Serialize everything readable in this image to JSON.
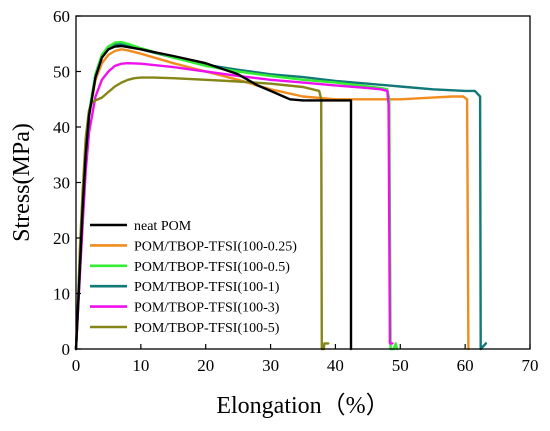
{
  "chart_data": {
    "type": "line",
    "title": "",
    "xlabel": "Elongation（%）",
    "ylabel": "Stress(MPa)",
    "xlim": [
      0,
      70
    ],
    "ylim": [
      0,
      60
    ],
    "x_ticks": [
      0,
      10,
      20,
      30,
      40,
      50,
      60,
      70
    ],
    "y_ticks": [
      0,
      10,
      20,
      30,
      40,
      50,
      60
    ],
    "grid": false,
    "legend_position": "bottom-left",
    "series": [
      {
        "name": "neat POM",
        "color": "#000000",
        "points": [
          [
            0,
            0
          ],
          [
            0.5,
            12
          ],
          [
            1,
            25
          ],
          [
            1.5,
            35
          ],
          [
            2,
            42
          ],
          [
            3,
            49
          ],
          [
            4,
            52.5
          ],
          [
            5,
            54
          ],
          [
            6,
            54.5
          ],
          [
            7,
            54.6
          ],
          [
            8,
            54.4
          ],
          [
            10,
            54
          ],
          [
            12,
            53.5
          ],
          [
            15,
            52.8
          ],
          [
            20,
            51.5
          ],
          [
            25,
            49.5
          ],
          [
            28,
            47.5
          ],
          [
            30,
            46.5
          ],
          [
            32,
            45.5
          ],
          [
            33,
            45
          ],
          [
            35,
            44.8
          ],
          [
            40,
            44.8
          ],
          [
            42.4,
            44.8
          ],
          [
            42.4,
            0
          ]
        ]
      },
      {
        "name": "POM/TBOP-TFSI(100-0.25)",
        "color": "#f28c1e",
        "points": [
          [
            0,
            0
          ],
          [
            0.5,
            12
          ],
          [
            1,
            25
          ],
          [
            1.5,
            35
          ],
          [
            2,
            42
          ],
          [
            3,
            48.5
          ],
          [
            4,
            51.5
          ],
          [
            5,
            53
          ],
          [
            6,
            53.7
          ],
          [
            7,
            54
          ],
          [
            8,
            53.8
          ],
          [
            10,
            53.2
          ],
          [
            15,
            51.5
          ],
          [
            20,
            50
          ],
          [
            25,
            48.5
          ],
          [
            30,
            46.8
          ],
          [
            35,
            45.5
          ],
          [
            40,
            45
          ],
          [
            45,
            45
          ],
          [
            50,
            45
          ],
          [
            55,
            45.3
          ],
          [
            58,
            45.5
          ],
          [
            59.7,
            45.5
          ],
          [
            60.3,
            45
          ],
          [
            60.5,
            0
          ]
        ]
      },
      {
        "name": "POM/TBOP-TFSI(100-0.5)",
        "color": "#33ee33",
        "points": [
          [
            0,
            0
          ],
          [
            0.5,
            12
          ],
          [
            1,
            25
          ],
          [
            1.5,
            35
          ],
          [
            2,
            42.5
          ],
          [
            3,
            49.5
          ],
          [
            4,
            53
          ],
          [
            5,
            54.5
          ],
          [
            6,
            55.2
          ],
          [
            7,
            55.3
          ],
          [
            8,
            55
          ],
          [
            10,
            54.2
          ],
          [
            15,
            52.5
          ],
          [
            20,
            51
          ],
          [
            25,
            50
          ],
          [
            30,
            49.2
          ],
          [
            35,
            48.5
          ],
          [
            40,
            48
          ],
          [
            45,
            47.3
          ],
          [
            47,
            47
          ],
          [
            48,
            46.8
          ],
          [
            48.3,
            45
          ],
          [
            48.5,
            0
          ],
          [
            49,
            0
          ],
          [
            49.3,
            1
          ],
          [
            49.5,
            0
          ]
        ]
      },
      {
        "name": "POM/TBOP-TFSI(100-1)",
        "color": "#117a77",
        "points": [
          [
            0,
            0
          ],
          [
            0.5,
            12
          ],
          [
            1,
            25
          ],
          [
            1.5,
            35
          ],
          [
            2,
            42.5
          ],
          [
            3,
            49.5
          ],
          [
            4,
            53
          ],
          [
            5,
            54.5
          ],
          [
            6,
            55
          ],
          [
            7,
            55
          ],
          [
            8,
            54.7
          ],
          [
            10,
            54
          ],
          [
            15,
            52.5
          ],
          [
            20,
            51.2
          ],
          [
            25,
            50.3
          ],
          [
            30,
            49.5
          ],
          [
            35,
            49
          ],
          [
            40,
            48.3
          ],
          [
            45,
            47.8
          ],
          [
            50,
            47.3
          ],
          [
            55,
            46.8
          ],
          [
            60,
            46.5
          ],
          [
            61.5,
            46.5
          ],
          [
            62.3,
            45.5
          ],
          [
            62.4,
            0
          ],
          [
            62.8,
            0.5
          ],
          [
            63.2,
            1
          ]
        ]
      },
      {
        "name": "POM/TBOP-TFSI(100-3)",
        "color": "#ee11ee",
        "points": [
          [
            0,
            0
          ],
          [
            0.5,
            11
          ],
          [
            1,
            22
          ],
          [
            1.5,
            32
          ],
          [
            2,
            39
          ],
          [
            3,
            45.5
          ],
          [
            4,
            48.5
          ],
          [
            5,
            50
          ],
          [
            6,
            51
          ],
          [
            7,
            51.4
          ],
          [
            8,
            51.5
          ],
          [
            10,
            51.4
          ],
          [
            15,
            50.8
          ],
          [
            20,
            50
          ],
          [
            25,
            49.2
          ],
          [
            30,
            48.5
          ],
          [
            35,
            48
          ],
          [
            40,
            47.5
          ],
          [
            45,
            47
          ],
          [
            47,
            46.8
          ],
          [
            48,
            46.5
          ],
          [
            48.2,
            44
          ],
          [
            48.4,
            1
          ],
          [
            48.8,
            1
          ]
        ]
      },
      {
        "name": "POM/TBOP-TFSI(100-5)",
        "color": "#858518",
        "points": [
          [
            0,
            0
          ],
          [
            0.3,
            8
          ],
          [
            0.6,
            18
          ],
          [
            1,
            28
          ],
          [
            1.5,
            38
          ],
          [
            2,
            43
          ],
          [
            2.5,
            44.5
          ],
          [
            3,
            44.8
          ],
          [
            4,
            45.3
          ],
          [
            5,
            46.3
          ],
          [
            6,
            47.3
          ],
          [
            7,
            48
          ],
          [
            8,
            48.5
          ],
          [
            9,
            48.8
          ],
          [
            10,
            48.9
          ],
          [
            12,
            48.9
          ],
          [
            15,
            48.8
          ],
          [
            20,
            48.5
          ],
          [
            25,
            48.2
          ],
          [
            30,
            47.8
          ],
          [
            35,
            47.2
          ],
          [
            37.5,
            46.5
          ],
          [
            37.8,
            45
          ],
          [
            37.9,
            0
          ],
          [
            38.2,
            0
          ],
          [
            38.3,
            1
          ],
          [
            38.9,
            1
          ]
        ]
      }
    ]
  }
}
